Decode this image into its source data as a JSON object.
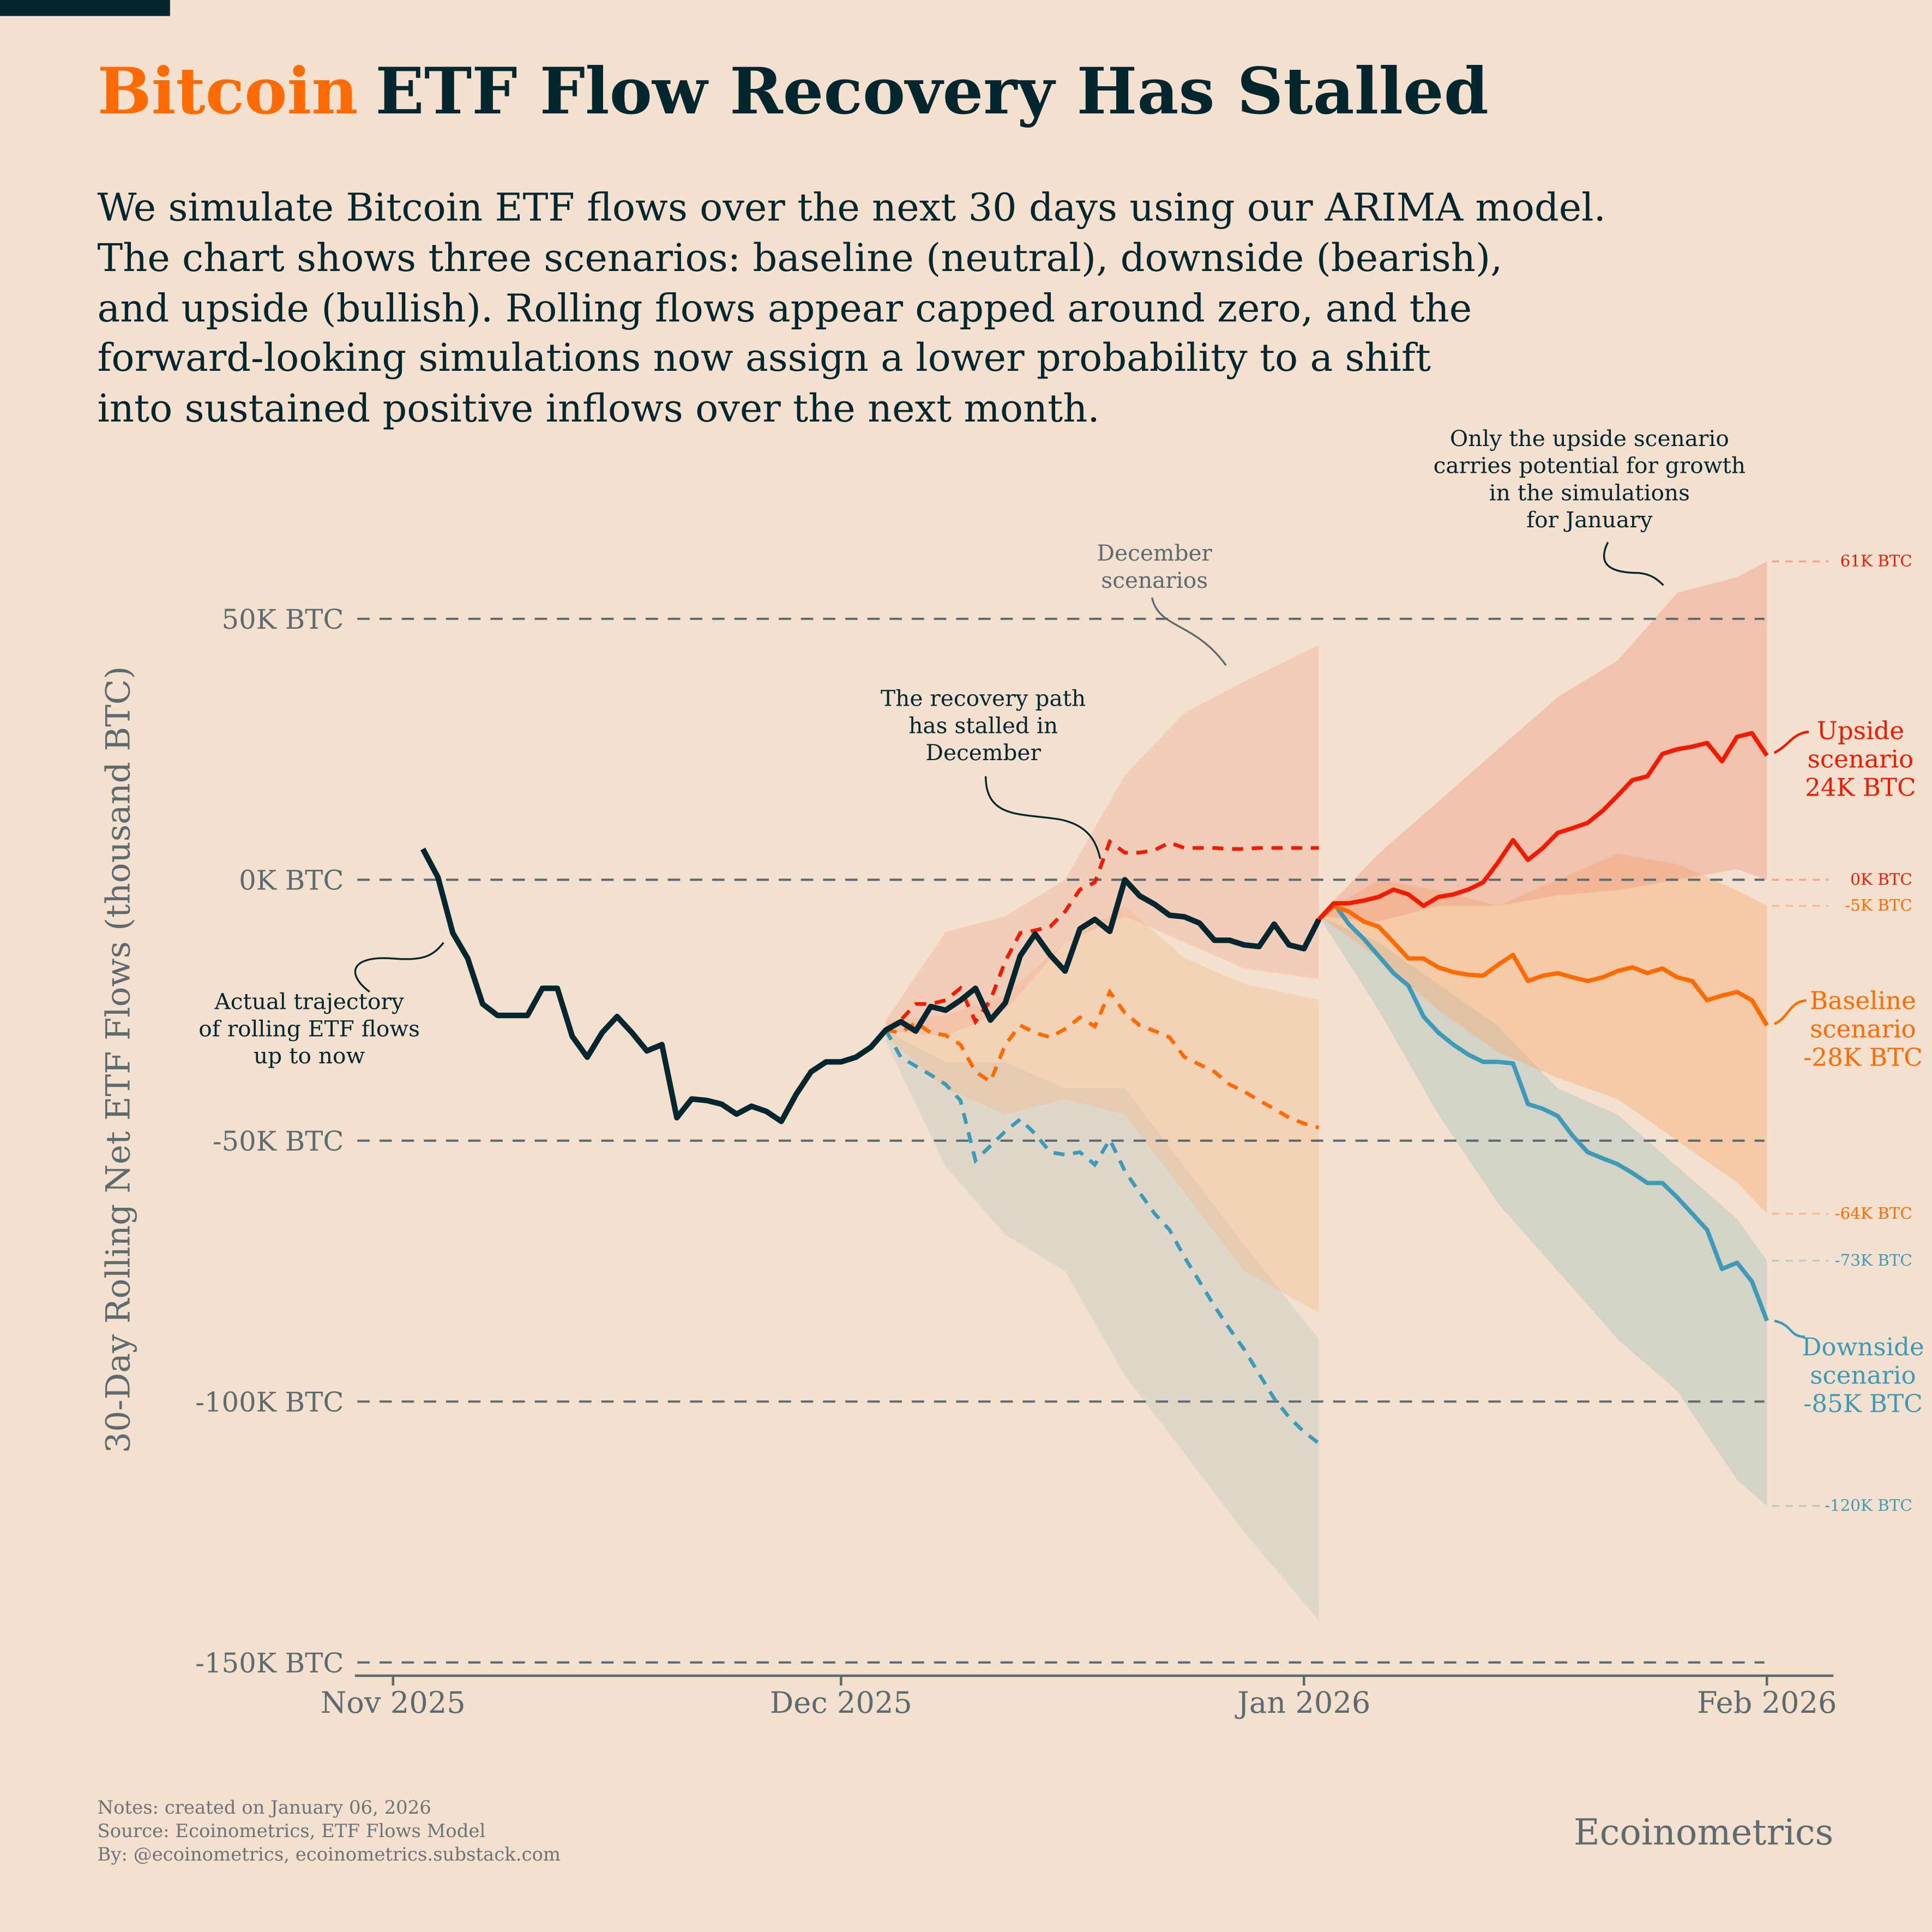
{
  "title": {
    "highlight": "Bitcoin",
    "rest": "ETF Flow Recovery Has Stalled"
  },
  "subtitle": [
    "We simulate Bitcoin ETF flows over the next 30 days using our ARIMA model.",
    "The chart shows three scenarios: baseline (neutral), downside (bearish),",
    "and upside (bullish). Rolling flows appear capped around zero, and the",
    "forward-looking simulations now assign a lower probability to a shift",
    "into sustained positive inflows over the next month."
  ],
  "colors": {
    "background": "#F3E0CF",
    "dark": "#03262F",
    "upside": "#F21A00",
    "baseline": "#FF6B00",
    "downside": "#3E9BB8",
    "grid": "#5C6B70"
  },
  "chart_data": {
    "type": "line",
    "ylabel": "30-Day Rolling Net ETF Flows (thousand BTC)",
    "ylim": [
      -150,
      65
    ],
    "y_ticks": [
      50,
      0,
      -50,
      -100,
      -150
    ],
    "y_tick_labels": [
      "50K BTC",
      "0K BTC",
      "-50K BTC",
      "-100K BTC",
      "-150K BTC"
    ],
    "x_ticks": [
      "2025-11-01",
      "2025-12-01",
      "2026-01-01",
      "2026-02-01"
    ],
    "x_tick_labels": [
      "Nov 2025",
      "Dec 2025",
      "Jan 2026",
      "Feb 2026"
    ],
    "grid": "horizontal dashed",
    "actual": {
      "x": [
        "2025-11-03",
        "2025-11-04",
        "2025-11-05",
        "2025-11-06",
        "2025-11-07",
        "2025-11-08",
        "2025-11-09",
        "2025-11-10",
        "2025-11-11",
        "2025-11-12",
        "2025-11-13",
        "2025-11-14",
        "2025-11-15",
        "2025-11-16",
        "2025-11-17",
        "2025-11-18",
        "2025-11-19",
        "2025-11-20",
        "2025-11-21",
        "2025-11-22",
        "2025-11-23",
        "2025-11-24",
        "2025-11-25",
        "2025-11-26",
        "2025-11-27",
        "2025-11-28",
        "2025-11-29",
        "2025-11-30",
        "2025-12-01",
        "2025-12-02",
        "2025-12-03",
        "2025-12-04",
        "2025-12-05",
        "2025-12-06",
        "2025-12-07",
        "2025-12-08",
        "2025-12-09",
        "2025-12-10",
        "2025-12-11",
        "2025-12-12",
        "2025-12-13",
        "2025-12-14",
        "2025-12-15",
        "2025-12-16",
        "2025-12-17",
        "2025-12-18",
        "2025-12-19",
        "2025-12-20",
        "2025-12-21",
        "2025-12-22",
        "2025-12-23",
        "2025-12-24",
        "2025-12-25",
        "2025-12-26",
        "2025-12-27",
        "2025-12-28",
        "2025-12-29",
        "2025-12-30",
        "2025-12-31",
        "2026-01-01",
        "2026-01-02"
      ],
      "y": [
        5.9,
        0.5,
        -10.2,
        -15.1,
        -23.8,
        -26.0,
        -26.0,
        -26.0,
        -20.8,
        -20.8,
        -30.0,
        -34.0,
        -29.3,
        -26.2,
        -29.3,
        -32.8,
        -31.6,
        -45.6,
        -42.0,
        -42.3,
        -43.0,
        -44.9,
        -43.4,
        -44.4,
        -46.3,
        -41.1,
        -36.8,
        -34.9,
        -34.9,
        -34.0,
        -32.1,
        -28.8,
        -27.2,
        -29.0,
        -24.3,
        -25.0,
        -23.1,
        -20.8,
        -26.9,
        -23.6,
        -14.6,
        -10.4,
        -14.4,
        -17.5,
        -9.4,
        -7.6,
        -9.9,
        0.0,
        -3.1,
        -4.7,
        -6.8,
        -7.1,
        -8.3,
        -11.6,
        -11.6,
        -12.5,
        -12.8,
        -8.5,
        -12.5,
        -13.2,
        -7.6
      ]
    },
    "december_scenarios": {
      "x": [
        "2025-12-04",
        "2025-12-05",
        "2025-12-06",
        "2025-12-07",
        "2025-12-08",
        "2025-12-09",
        "2025-12-10",
        "2025-12-11",
        "2025-12-12",
        "2025-12-13",
        "2025-12-14",
        "2025-12-15",
        "2025-12-16",
        "2025-12-17",
        "2025-12-18",
        "2025-12-19",
        "2025-12-20",
        "2025-12-21",
        "2025-12-22",
        "2025-12-23",
        "2025-12-24",
        "2025-12-25",
        "2025-12-26",
        "2025-12-27",
        "2025-12-28",
        "2025-12-29",
        "2025-12-30",
        "2025-12-31",
        "2026-01-01",
        "2026-01-02"
      ],
      "upside": [
        -28.8,
        -26.9,
        -23.8,
        -23.8,
        -23.1,
        -20.8,
        -27.2,
        -23.1,
        -15.6,
        -10.2,
        -9.7,
        -9.0,
        -6.1,
        -1.9,
        -0.5,
        7.3,
        5.2,
        5.2,
        5.7,
        7.1,
        6.1,
        6.1,
        6.1,
        5.9,
        5.9,
        6.1,
        6.1,
        6.1,
        6.1,
        6.1
      ],
      "baseline": [
        -28.8,
        -29.3,
        -27.4,
        -29.3,
        -29.8,
        -31.6,
        -36.8,
        -38.7,
        -31.6,
        -27.9,
        -29.3,
        -30.2,
        -28.6,
        -26.4,
        -28.1,
        -21.5,
        -25.5,
        -27.9,
        -29.0,
        -30.2,
        -34.0,
        -35.4,
        -36.8,
        -39.2,
        -40.6,
        -42.3,
        -43.9,
        -45.6,
        -46.7,
        -47.5
      ],
      "downside": [
        -28.8,
        -34.0,
        -35.7,
        -37.4,
        -39.2,
        -42.3,
        -53.8,
        -51.0,
        -48.2,
        -45.9,
        -48.7,
        -52.2,
        -52.7,
        -52.2,
        -54.6,
        -49.8,
        -55.8,
        -60.0,
        -64.0,
        -67.1,
        -72.3,
        -77.0,
        -81.7,
        -86.0,
        -90.0,
        -94.7,
        -99.4,
        -103.0,
        -105.8,
        -108.0
      ],
      "bands": {
        "x": [
          "2025-12-04",
          "2025-12-08",
          "2025-12-12",
          "2025-12-16",
          "2025-12-20",
          "2025-12-24",
          "2025-12-28",
          "2026-01-02"
        ],
        "upside": {
          "lower": [
            -29,
            -30,
            -25,
            -12,
            -7,
            -12,
            -17,
            -19
          ],
          "upper": [
            -27,
            -10,
            -7,
            0,
            20,
            32,
            38,
            45
          ]
        },
        "baseline": {
          "lower": [
            -30,
            -40,
            -45,
            -42,
            -45,
            -60,
            -75,
            -83
          ],
          "upper": [
            -27,
            -26,
            -22,
            -12,
            -5,
            -15,
            -20,
            -23
          ]
        },
        "downside": {
          "lower": [
            -31,
            -55,
            -68,
            -75,
            -95,
            -110,
            -125,
            -142
          ],
          "upper": [
            -29,
            -35,
            -35,
            -40,
            -40,
            -55,
            -70,
            -88
          ]
        }
      }
    },
    "january_scenarios": {
      "x": [
        "2026-01-02",
        "2026-01-03",
        "2026-01-04",
        "2026-01-05",
        "2026-01-06",
        "2026-01-07",
        "2026-01-08",
        "2026-01-09",
        "2026-01-10",
        "2026-01-11",
        "2026-01-12",
        "2026-01-13",
        "2026-01-14",
        "2026-01-15",
        "2026-01-16",
        "2026-01-17",
        "2026-01-18",
        "2026-01-19",
        "2026-01-20",
        "2026-01-21",
        "2026-01-22",
        "2026-01-23",
        "2026-01-24",
        "2026-01-25",
        "2026-01-26",
        "2026-01-27",
        "2026-01-28",
        "2026-01-29",
        "2026-01-30",
        "2026-01-31",
        "2026-02-01"
      ],
      "upside": [
        -7.6,
        -4.5,
        -4.5,
        -4.0,
        -3.3,
        -1.9,
        -2.8,
        -5.0,
        -3.3,
        -2.8,
        -1.9,
        -0.5,
        3.3,
        7.6,
        3.8,
        6.1,
        9.0,
        9.9,
        10.9,
        13.2,
        16.1,
        19.1,
        19.8,
        24.1,
        25.0,
        25.5,
        26.2,
        22.7,
        27.4,
        28.1,
        23.8
      ],
      "baseline": [
        -7.6,
        -5.0,
        -6.1,
        -8.0,
        -9.0,
        -12.0,
        -15.1,
        -15.1,
        -16.8,
        -17.7,
        -18.2,
        -18.4,
        -16.3,
        -14.4,
        -19.4,
        -18.4,
        -17.9,
        -18.7,
        -19.4,
        -18.7,
        -17.5,
        -16.8,
        -17.9,
        -17.0,
        -18.7,
        -19.4,
        -23.1,
        -22.2,
        -21.5,
        -23.1,
        -27.9
      ],
      "downside": [
        -7.6,
        -4.5,
        -8.5,
        -11.3,
        -14.6,
        -17.9,
        -20.3,
        -26.2,
        -29.3,
        -31.6,
        -33.5,
        -34.9,
        -34.9,
        -35.2,
        -43.0,
        -43.9,
        -45.3,
        -49.1,
        -52.2,
        -53.4,
        -54.5,
        -56.2,
        -58.1,
        -58.1,
        -60.9,
        -64.0,
        -67.1,
        -74.6,
        -73.4,
        -77.0,
        -84.5
      ],
      "bands": {
        "x": [
          "2026-01-02",
          "2026-01-06",
          "2026-01-10",
          "2026-01-14",
          "2026-01-18",
          "2026-01-22",
          "2026-01-26",
          "2026-01-30",
          "2026-02-01"
        ],
        "upside": {
          "lower": [
            -7,
            -8,
            -5,
            -5,
            -3,
            -2,
            0,
            2,
            0
          ],
          "upper": [
            -7,
            5,
            15,
            25,
            35,
            42,
            55,
            58,
            61
          ]
        },
        "baseline": {
          "lower": [
            -7,
            -15,
            -25,
            -33,
            -38,
            -42,
            -50,
            -58,
            -64
          ],
          "upper": [
            -7,
            0,
            -2,
            -5,
            0,
            5,
            3,
            -2,
            -5
          ]
        },
        "downside": {
          "lower": [
            -7,
            -25,
            -45,
            -62,
            -75,
            -88,
            -98,
            -115,
            -120
          ],
          "upper": [
            -7,
            -12,
            -20,
            -28,
            -40,
            -45,
            -55,
            -65,
            -73
          ]
        }
      }
    },
    "range_labels": [
      {
        "value": 61,
        "label": "61K BTC",
        "series": "upside"
      },
      {
        "value": 0,
        "label": "0K BTC",
        "series": "upside"
      },
      {
        "value": -5,
        "label": "-5K BTC",
        "series": "baseline"
      },
      {
        "value": -64,
        "label": "-64K BTC",
        "series": "baseline"
      },
      {
        "value": -73,
        "label": "-73K BTC",
        "series": "downside"
      },
      {
        "value": -120,
        "label": "-120K BTC",
        "series": "downside"
      }
    ],
    "scenario_labels": {
      "upside": [
        "Upside",
        "scenario",
        "24K BTC"
      ],
      "baseline": [
        "Baseline",
        "scenario",
        "-28K BTC"
      ],
      "downside": [
        "Downside",
        "scenario",
        "-85K BTC"
      ]
    },
    "annotations": {
      "actual": [
        "Actual trajectory",
        "of rolling ETF flows",
        "up to now"
      ],
      "stalled": [
        "The recovery path",
        "has stalled in",
        "December"
      ],
      "december": [
        "December",
        "scenarios"
      ],
      "upside_only": [
        "Only the upside scenario",
        "carries potential for growth",
        "in the simulations",
        "for January"
      ]
    }
  },
  "footer": {
    "notes": "Notes: created on January 06, 2026",
    "source": "Source: Ecoinometrics, ETF Flows Model",
    "by": "By: @ecoinometrics, ecoinometrics.substack.com",
    "brand": "Ecoinometrics"
  }
}
